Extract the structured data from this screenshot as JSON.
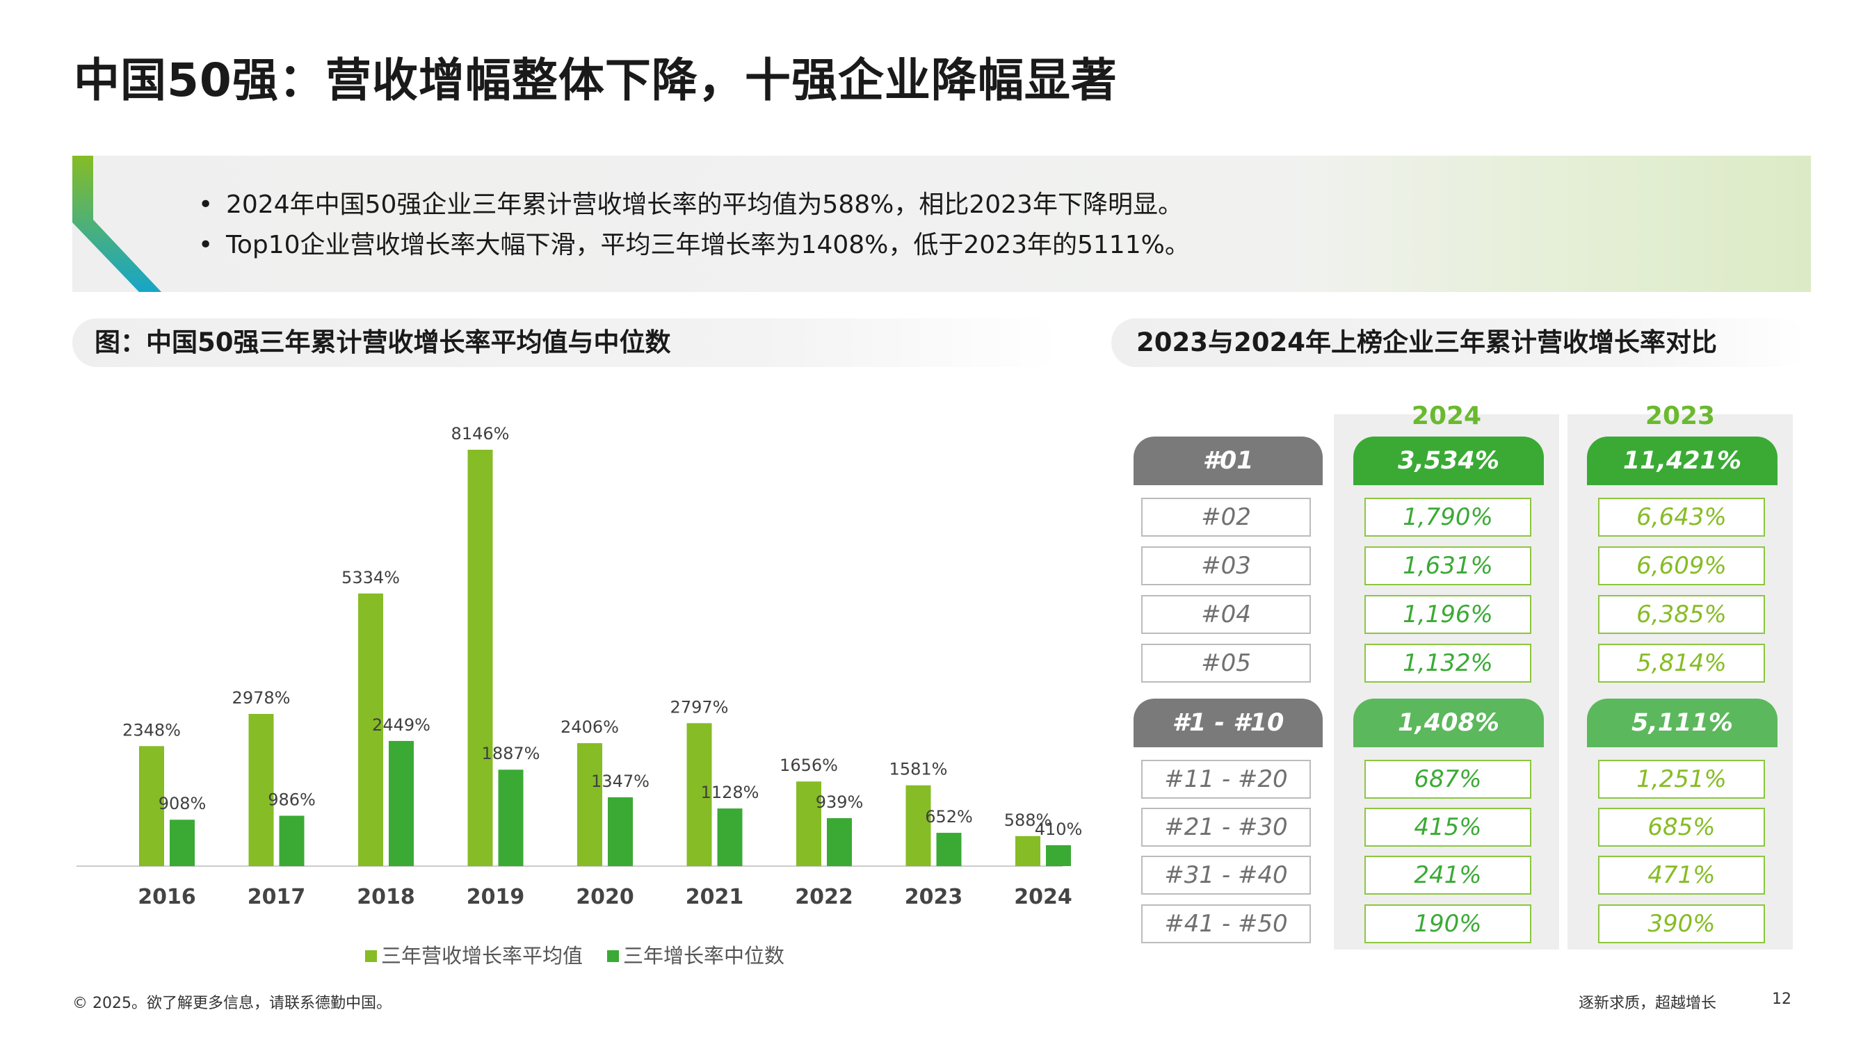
{
  "title": "中国50强：营收增幅整体下降，十强企业降幅显著",
  "bullets": [
    "2024年中国50强企业三年累计营收增长率的平均值为588%，相比2023年下降明显。",
    "Top10企业营收增长率大幅下滑，平均三年增长率为1408%，低于2023年的5111%。"
  ],
  "left_subhead": "图：中国50强三年累计营收增长率平均值与中位数",
  "right_subhead": "2023与2024年上榜企业三年累计营收增长率对比",
  "colors": {
    "avg": "#86bc25",
    "median": "#3aaa35",
    "tab_dark": "#3aaa35",
    "tab_light": "#5cb85c",
    "rank_tab": "#7a7a7a"
  },
  "chart_data": {
    "type": "bar",
    "categories": [
      "2016",
      "2017",
      "2018",
      "2019",
      "2020",
      "2021",
      "2022",
      "2023",
      "2024"
    ],
    "series": [
      {
        "name": "三年营收增长率平均值",
        "values": [
          2348,
          2978,
          5334,
          8146,
          2406,
          2797,
          1656,
          1581,
          588
        ],
        "labels": [
          "2348%",
          "2978%",
          "5334%",
          "8146%",
          "2406%",
          "2797%",
          "1656%",
          "1581%",
          "588%"
        ]
      },
      {
        "name": "三年增长率中位数",
        "values": [
          908,
          986,
          2449,
          1887,
          1347,
          1128,
          939,
          652,
          410
        ],
        "labels": [
          "908%",
          "986%",
          "2449%",
          "1887%",
          "1347%",
          "1128%",
          "939%",
          "652%",
          "410%"
        ]
      }
    ],
    "ylim": [
      0,
      8146
    ],
    "grid": false,
    "legend": "bottom"
  },
  "comparison": {
    "col2024": "2024",
    "col2023": "2023",
    "rows": [
      {
        "rank": "#01",
        "v2024": "3,534%",
        "v2023": "11,421%",
        "style": "tab"
      },
      {
        "rank": "#02",
        "v2024": "1,790%",
        "v2023": "6,643%",
        "style": "box"
      },
      {
        "rank": "#03",
        "v2024": "1,631%",
        "v2023": "6,609%",
        "style": "box"
      },
      {
        "rank": "#04",
        "v2024": "1,196%",
        "v2023": "6,385%",
        "style": "box"
      },
      {
        "rank": "#05",
        "v2024": "1,132%",
        "v2023": "5,814%",
        "style": "box"
      },
      {
        "rank": "#1 - #10",
        "v2024": "1,408%",
        "v2023": "5,111%",
        "style": "tab"
      },
      {
        "rank": "#11 - #20",
        "v2024": "687%",
        "v2023": "1,251%",
        "style": "box"
      },
      {
        "rank": "#21 - #30",
        "v2024": "415%",
        "v2023": "685%",
        "style": "box"
      },
      {
        "rank": "#31 - #40",
        "v2024": "241%",
        "v2023": "471%",
        "style": "box"
      },
      {
        "rank": "#41 - #50",
        "v2024": "190%",
        "v2023": "390%",
        "style": "box"
      }
    ]
  },
  "footer": {
    "left": "© 2025。欲了解更多信息，请联系德勤中国。",
    "right": "逐新求质，超越增长",
    "page": "12"
  }
}
